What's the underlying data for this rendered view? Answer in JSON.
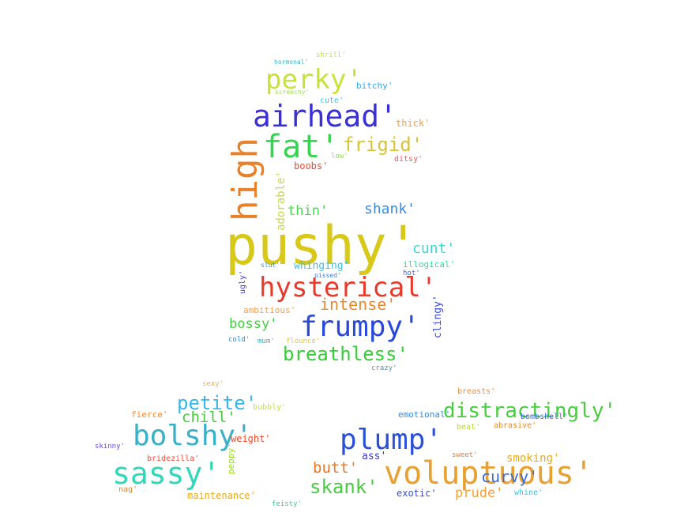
{
  "words": [
    {
      "text": "shrill'",
      "color": "#c8e03a"
    },
    {
      "text": "hormonal'",
      "color": "#2bb6c8"
    },
    {
      "text": "perky'",
      "color": "#c9e236"
    },
    {
      "text": "bitchy'",
      "color": "#37a6e8"
    },
    {
      "text": "screechy'",
      "color": "#9fe14f"
    },
    {
      "text": "cute'",
      "color": "#37c6e6"
    },
    {
      "text": "airhead'",
      "color": "#3a2fd8"
    },
    {
      "text": "thick'",
      "color": "#f0a04a"
    },
    {
      "text": "fat'",
      "color": "#35d64f"
    },
    {
      "text": "frigid'",
      "color": "#d8c43a"
    },
    {
      "text": "low'",
      "color": "#8fe04a"
    },
    {
      "text": "ditsy'",
      "color": "#f05a5a"
    },
    {
      "text": "boobs'",
      "color": "#e84a3a"
    },
    {
      "text": "high",
      "color": "#e8822a"
    },
    {
      "text": "adorable'",
      "color": "#c8d83a"
    },
    {
      "text": "thin'",
      "color": "#4ad650"
    },
    {
      "text": "shank'",
      "color": "#3a8ae0"
    },
    {
      "text": "pushy'",
      "color": "#d8c81a"
    },
    {
      "text": "cunt'",
      "color": "#3ad6d6"
    },
    {
      "text": "slut'",
      "color": "#2a9ad8"
    },
    {
      "text": "whinging'",
      "color": "#3ac0e8"
    },
    {
      "text": "illogical'",
      "color": "#3ad6a0"
    },
    {
      "text": "pissed'",
      "color": "#3a80d8"
    },
    {
      "text": "hot'",
      "color": "#3a6ae0"
    },
    {
      "text": "ugly'",
      "color": "#3a3ad8"
    },
    {
      "text": "hysterical'",
      "color": "#e83a2a"
    },
    {
      "text": "ambitious'",
      "color": "#f0a050"
    },
    {
      "text": "intense'",
      "color": "#e8882a"
    },
    {
      "text": "clingy'",
      "color": "#3a4ad8"
    },
    {
      "text": "bossy'",
      "color": "#46cc40"
    },
    {
      "text": "frumpy'",
      "color": "#2a48d8"
    },
    {
      "text": "cold'",
      "color": "#2a8ad8"
    },
    {
      "text": "mum'",
      "color": "#3ab0c8"
    },
    {
      "text": "flounce'",
      "color": "#e8c03a"
    },
    {
      "text": "breathless'",
      "color": "#38cc3a"
    },
    {
      "text": "crazy'",
      "color": "#3a9ac8"
    },
    {
      "text": "sexy'",
      "color": "#f0b060"
    },
    {
      "text": "breasts'",
      "color": "#f08a3a"
    },
    {
      "text": "petite'",
      "color": "#38b6e8"
    },
    {
      "text": "bubbly'",
      "color": "#c8e03a"
    },
    {
      "text": "fierce'",
      "color": "#f08a3a"
    },
    {
      "text": "chill'",
      "color": "#48cc40"
    },
    {
      "text": "bolshy'",
      "color": "#3ab0c8"
    },
    {
      "text": "weight'",
      "color": "#f04a2a"
    },
    {
      "text": "skinny'",
      "color": "#6a4ae0"
    },
    {
      "text": "bridezilla'",
      "color": "#f04a3a"
    },
    {
      "text": "peppy'",
      "color": "#a0e01a"
    },
    {
      "text": "sassy'",
      "color": "#30d8b8"
    },
    {
      "text": "nag'",
      "color": "#e8882a"
    },
    {
      "text": "maintenance'",
      "color": "#e8aa1a"
    },
    {
      "text": "feisty'",
      "color": "#38c8a0"
    },
    {
      "text": "emotional'",
      "color": "#3a8ad8"
    },
    {
      "text": "distractingly'",
      "color": "#48cc40"
    },
    {
      "text": "bombshell'",
      "color": "#3a6ae0"
    },
    {
      "text": "abrasive'",
      "color": "#e8882a"
    },
    {
      "text": "beat'",
      "color": "#b8d83a"
    },
    {
      "text": "plump'",
      "color": "#2a50d8"
    },
    {
      "text": "ass'",
      "color": "#3a3ad8"
    },
    {
      "text": "sweet'",
      "color": "#e8782a"
    },
    {
      "text": "smoking'",
      "color": "#e8aa1a"
    },
    {
      "text": "butt'",
      "color": "#e8782a"
    },
    {
      "text": "voluptuous'",
      "color": "#e8a030"
    },
    {
      "text": "curvy'",
      "color": "#3a6ae0"
    },
    {
      "text": "skank'",
      "color": "#48cc40"
    },
    {
      "text": "exotic'",
      "color": "#3a4ad8"
    },
    {
      "text": "prude'",
      "color": "#f0a040"
    },
    {
      "text": "whine'",
      "color": "#3ac0e8"
    }
  ]
}
